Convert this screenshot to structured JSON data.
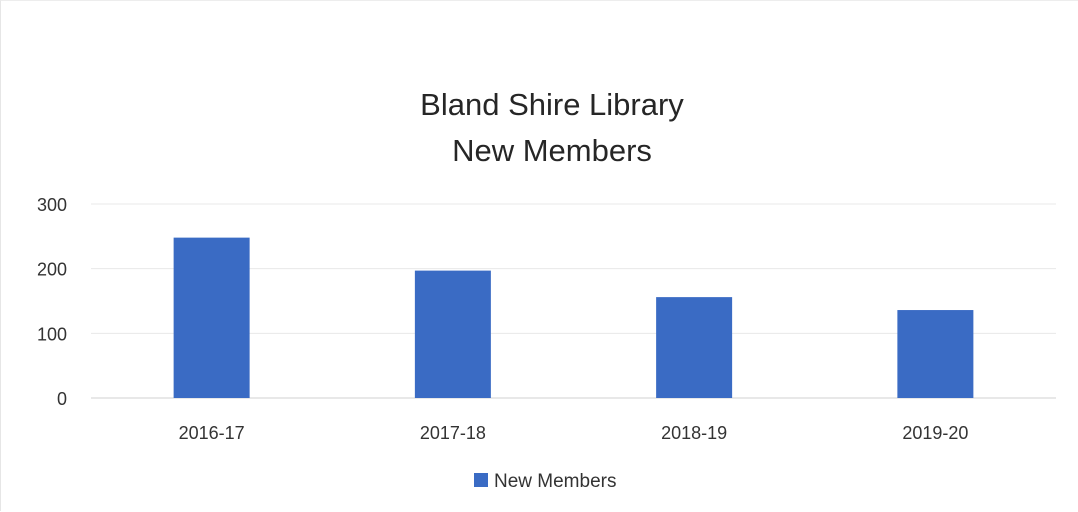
{
  "chart_data": {
    "type": "bar",
    "title_lines": [
      "Bland Shire Library",
      "New Members"
    ],
    "categories": [
      "2016-17",
      "2017-18",
      "2018-19",
      "2019-20"
    ],
    "series": [
      {
        "name": "New Members",
        "values": [
          248,
          197,
          156,
          136
        ],
        "color": "#3a6bc4"
      }
    ],
    "y_ticks": [
      "0",
      "100",
      "200",
      "300"
    ],
    "ylim": [
      0,
      300
    ],
    "xlabel": "",
    "ylabel": "",
    "grid": true,
    "legend_position": "bottom"
  }
}
